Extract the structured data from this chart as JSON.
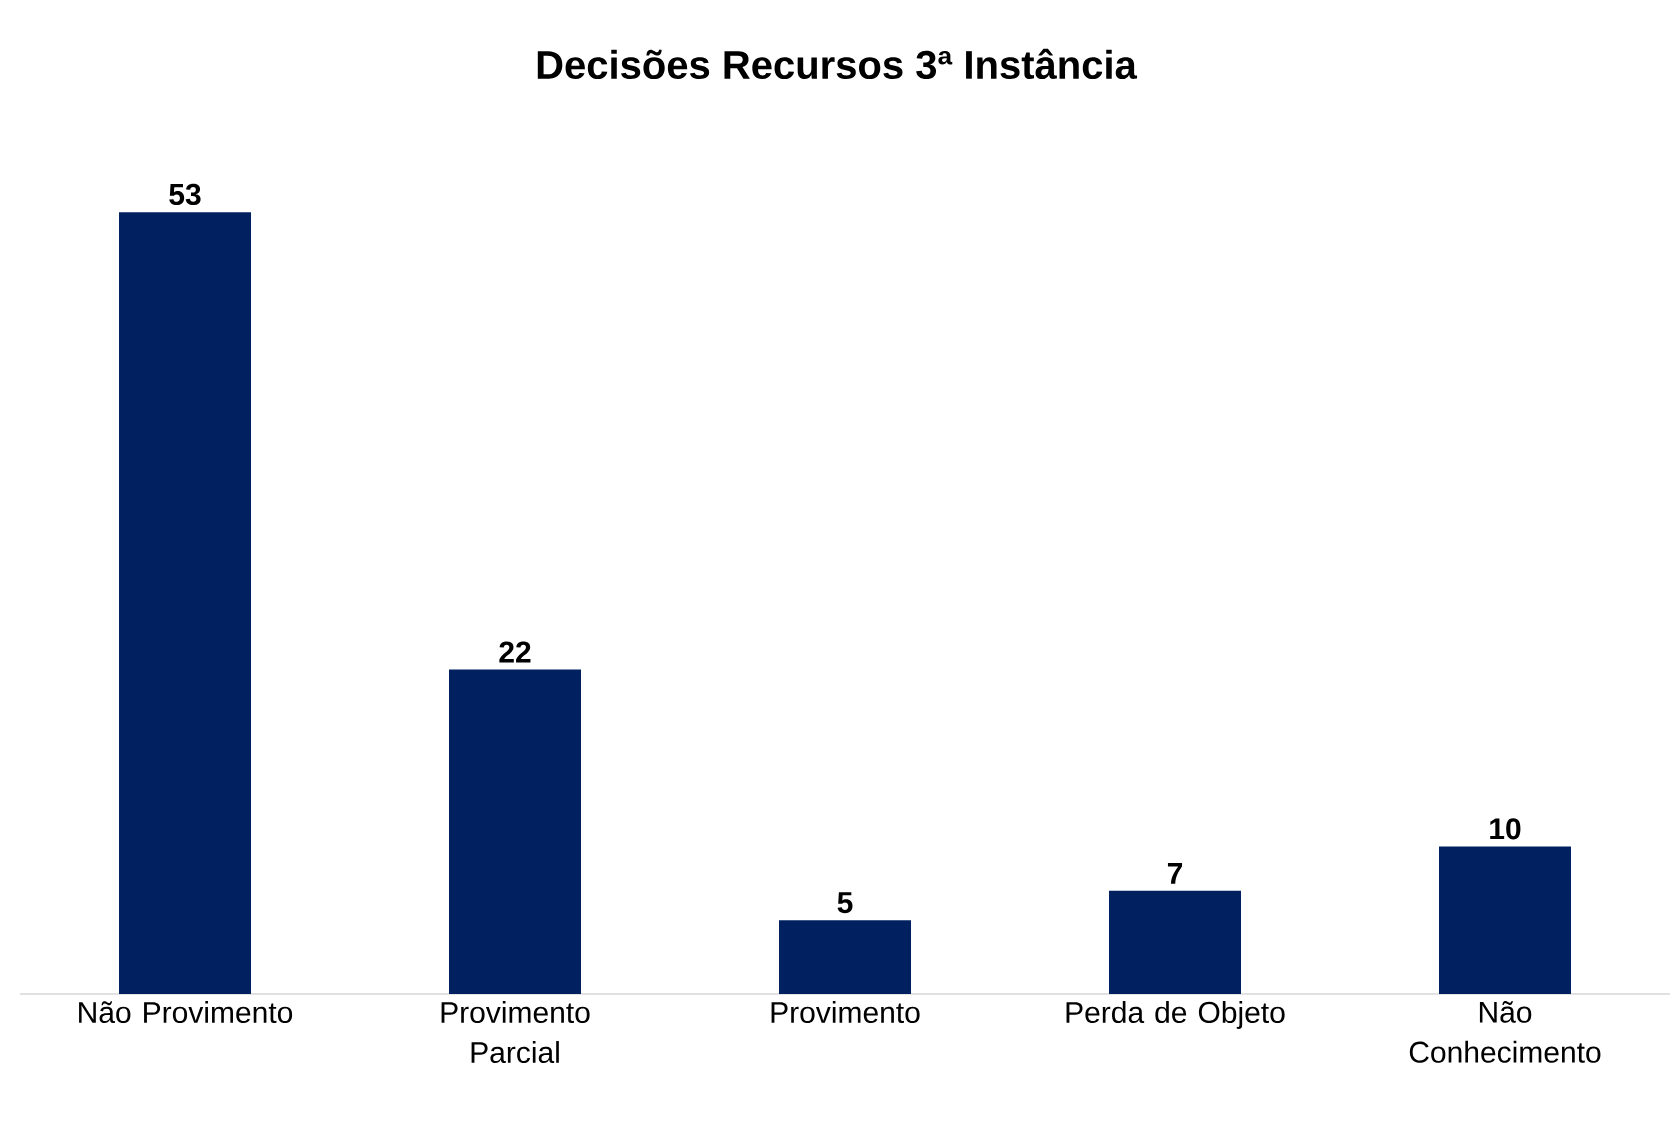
{
  "chart_data": {
    "type": "bar",
    "title": "Decisões Recursos 3ª Instância",
    "categories": [
      "Não Provimento",
      "Provimento Parcial",
      "Provimento",
      "Perda de Objeto",
      "Não Conhecimento"
    ],
    "values": [
      53,
      22,
      5,
      7,
      10
    ],
    "color": "#002060",
    "data_labels": true
  }
}
